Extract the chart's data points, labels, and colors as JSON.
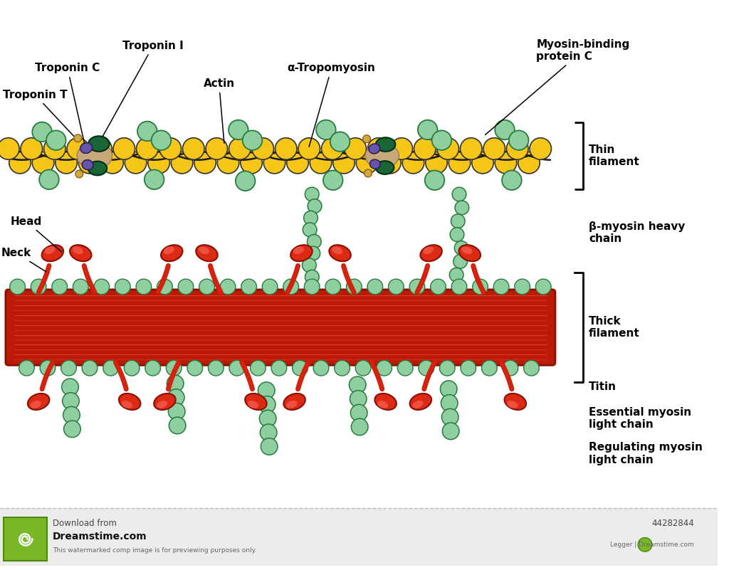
{
  "background_color": "#ffffff",
  "actin_color": "#f5c518",
  "actin_outline": "#333333",
  "green_bead_color": "#8ecfa0",
  "green_bead_outline": "#2a7a40",
  "dark_green_color": "#1a6535",
  "purple_color": "#6655aa",
  "tan_color": "#c8a878",
  "red_color": "#cc2010",
  "fontsize": 11,
  "labels": {
    "troponin_t": "Troponin T",
    "troponin_c": "Troponin C",
    "troponin_i": "Troponin I",
    "actin": "Actin",
    "alpha_tropomyosin": "α-Tropomyosin",
    "myosin_binding": "Myosin-binding\nprotein C",
    "thin_filament": "Thin\nfilament",
    "beta_myosin": "β-myosin heavy\nchain",
    "head": "Head",
    "neck": "Neck",
    "thick_filament": "Thick\nfilament",
    "titin": "Titin",
    "essential_myosin": "Essential myosin\nlight chain",
    "regulating_myosin": "Regulating myosin\nlight chain"
  }
}
